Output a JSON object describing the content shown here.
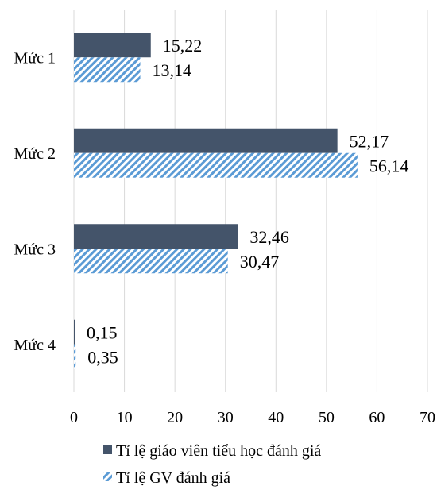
{
  "chart_data": {
    "type": "bar",
    "orientation": "horizontal",
    "categories": [
      "Mức 1",
      "Mức 2",
      "Mức 3",
      "Mức 4"
    ],
    "series": [
      {
        "name": "Tỉ lệ giáo viên tiểu học đánh giá",
        "values": [
          15.22,
          52.17,
          32.46,
          0.15
        ],
        "labels": [
          "15,22",
          "52,17",
          "32,46",
          "0,15"
        ],
        "color": "#44546a",
        "fill": "solid"
      },
      {
        "name": "Tỉ lệ GV đánh giá",
        "values": [
          13.14,
          56.14,
          30.47,
          0.35
        ],
        "labels": [
          "13,14",
          "56,14",
          "30,47",
          "0,35"
        ],
        "color": "#5b9bd5",
        "fill": "diagonal-stripes"
      }
    ],
    "xlim": [
      0,
      70
    ],
    "xticks": [
      0,
      10,
      20,
      30,
      40,
      50,
      60,
      70
    ],
    "grid": "vertical",
    "legend": "bottom"
  }
}
